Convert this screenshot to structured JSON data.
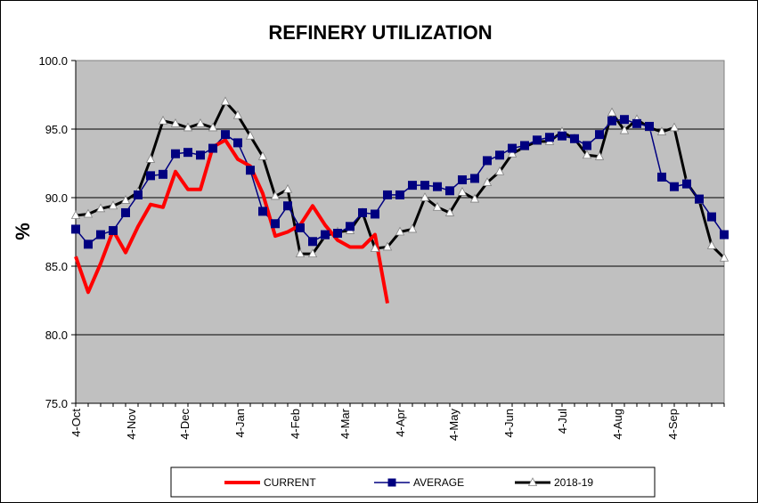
{
  "chart_data": {
    "type": "line",
    "title": "REFINERY UTILIZATION",
    "ylabel": "%",
    "xlabel": "",
    "ylim": [
      75,
      100
    ],
    "yticks": [
      "100.0",
      "95.0",
      "90.0",
      "85.0",
      "80.0",
      "75.0"
    ],
    "yticks_values": [
      100,
      95,
      90,
      85,
      80,
      75
    ],
    "x_tick_labels": [
      "4-Oct",
      "4-Nov",
      "4-Dec",
      "4-Jan",
      "4-Feb",
      "4-Mar",
      "4-Apr",
      "4-May",
      "4-Jun",
      "4-Jul",
      "4-Aug",
      "4-Sep"
    ],
    "weeks": 52,
    "grid": "horizontal",
    "plot_background": "#c0c0c0",
    "legend_position": "bottom",
    "series": [
      {
        "name": "CURRENT",
        "color": "#ff0000",
        "marker": "none",
        "values": [
          85.7,
          83.1,
          85.2,
          87.6,
          86.0,
          87.9,
          89.5,
          89.3,
          91.9,
          90.6,
          90.6,
          93.7,
          94.2,
          92.8,
          92.3,
          90.3,
          87.2,
          87.5,
          88.0,
          89.4,
          88.0,
          86.9,
          86.4,
          86.4,
          87.3,
          82.3
        ]
      },
      {
        "name": "AVERAGE",
        "color": "#000080",
        "marker": "square",
        "values": [
          87.7,
          86.6,
          87.3,
          87.6,
          88.9,
          90.2,
          91.6,
          91.7,
          93.2,
          93.3,
          93.1,
          93.6,
          94.6,
          94.0,
          92.0,
          89.0,
          88.1,
          89.4,
          87.8,
          86.8,
          87.3,
          87.4,
          87.9,
          88.9,
          88.8,
          90.2,
          90.2,
          90.9,
          90.9,
          90.8,
          90.5,
          91.3,
          91.4,
          92.7,
          93.1,
          93.6,
          93.8,
          94.2,
          94.4,
          94.5,
          94.3,
          93.8,
          94.6,
          95.6,
          95.7,
          95.4,
          95.2,
          91.5,
          90.8,
          91.0,
          89.9,
          88.6,
          87.3
        ]
      },
      {
        "name": "2018-19",
        "color": "#000000",
        "marker": "triangle",
        "values": [
          88.7,
          88.8,
          89.2,
          89.4,
          89.8,
          90.4,
          92.8,
          95.6,
          95.4,
          95.1,
          95.4,
          95.1,
          97.0,
          96.0,
          94.5,
          93.0,
          90.1,
          90.6,
          85.9,
          85.9,
          87.2,
          87.5,
          87.6,
          88.9,
          86.3,
          86.4,
          87.5,
          87.7,
          90.0,
          89.3,
          88.9,
          90.4,
          89.9,
          91.1,
          91.9,
          93.2,
          93.7,
          94.1,
          94.1,
          94.8,
          94.3,
          93.1,
          93.0,
          96.2,
          94.9,
          95.7,
          95.1,
          94.8,
          95.1,
          91.1,
          89.8,
          86.5,
          85.6
        ]
      }
    ]
  }
}
